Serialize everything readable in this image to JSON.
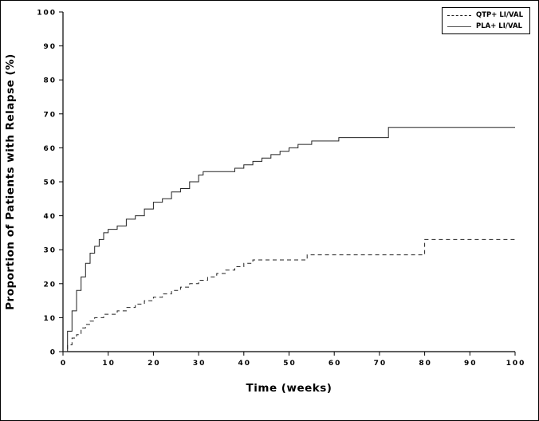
{
  "chart_data": {
    "type": "line",
    "subtype": "kaplan-meier-step",
    "title": "",
    "xlabel": "Time (weeks)",
    "ylabel": "Proportion of Patients with Relapse (%)",
    "xlim": [
      0,
      100
    ],
    "ylim": [
      0,
      100
    ],
    "xticks": [
      0,
      10,
      20,
      30,
      40,
      50,
      60,
      70,
      80,
      90,
      100
    ],
    "yticks": [
      0,
      10,
      20,
      30,
      40,
      50,
      60,
      70,
      80,
      90,
      100
    ],
    "grid": false,
    "legend": {
      "position": "top-right",
      "entries": [
        {
          "label": "QTP+ LI/VAL",
          "line_style": "dashed"
        },
        {
          "label": "PLA+ LI/VAL",
          "line_style": "solid"
        }
      ]
    },
    "series": [
      {
        "name": "QTP+ LI/VAL",
        "line_style": "dashed",
        "color": "#222222",
        "step": true,
        "points": [
          [
            0,
            0
          ],
          [
            1,
            2
          ],
          [
            2,
            4
          ],
          [
            3,
            5
          ],
          [
            4,
            7
          ],
          [
            5,
            8
          ],
          [
            6,
            9
          ],
          [
            7,
            10
          ],
          [
            9,
            11
          ],
          [
            12,
            12
          ],
          [
            14,
            13
          ],
          [
            16,
            14
          ],
          [
            18,
            15
          ],
          [
            20,
            16
          ],
          [
            22,
            17
          ],
          [
            24,
            18
          ],
          [
            26,
            19
          ],
          [
            28,
            20
          ],
          [
            30,
            21
          ],
          [
            32,
            22
          ],
          [
            34,
            23
          ],
          [
            36,
            24
          ],
          [
            38,
            25
          ],
          [
            40,
            26
          ],
          [
            42,
            27
          ],
          [
            54,
            28.5
          ],
          [
            80,
            33
          ],
          [
            100,
            33
          ]
        ]
      },
      {
        "name": "PLA+ LI/VAL",
        "line_style": "solid",
        "color": "#222222",
        "step": true,
        "points": [
          [
            0,
            0
          ],
          [
            1,
            6
          ],
          [
            2,
            12
          ],
          [
            3,
            18
          ],
          [
            4,
            22
          ],
          [
            5,
            26
          ],
          [
            6,
            29
          ],
          [
            7,
            31
          ],
          [
            8,
            33
          ],
          [
            9,
            35
          ],
          [
            10,
            36
          ],
          [
            12,
            37
          ],
          [
            14,
            39
          ],
          [
            16,
            40
          ],
          [
            18,
            42
          ],
          [
            20,
            44
          ],
          [
            22,
            45
          ],
          [
            24,
            47
          ],
          [
            26,
            48
          ],
          [
            28,
            50
          ],
          [
            30,
            52
          ],
          [
            31,
            53
          ],
          [
            38,
            54
          ],
          [
            40,
            55
          ],
          [
            42,
            56
          ],
          [
            44,
            57
          ],
          [
            46,
            58
          ],
          [
            48,
            59
          ],
          [
            50,
            60
          ],
          [
            52,
            61
          ],
          [
            55,
            62
          ],
          [
            61,
            63
          ],
          [
            72,
            66
          ],
          [
            100,
            66
          ]
        ]
      }
    ],
    "colors": {
      "axis": "#000000",
      "line": "#222222",
      "background": "#ffffff"
    }
  }
}
